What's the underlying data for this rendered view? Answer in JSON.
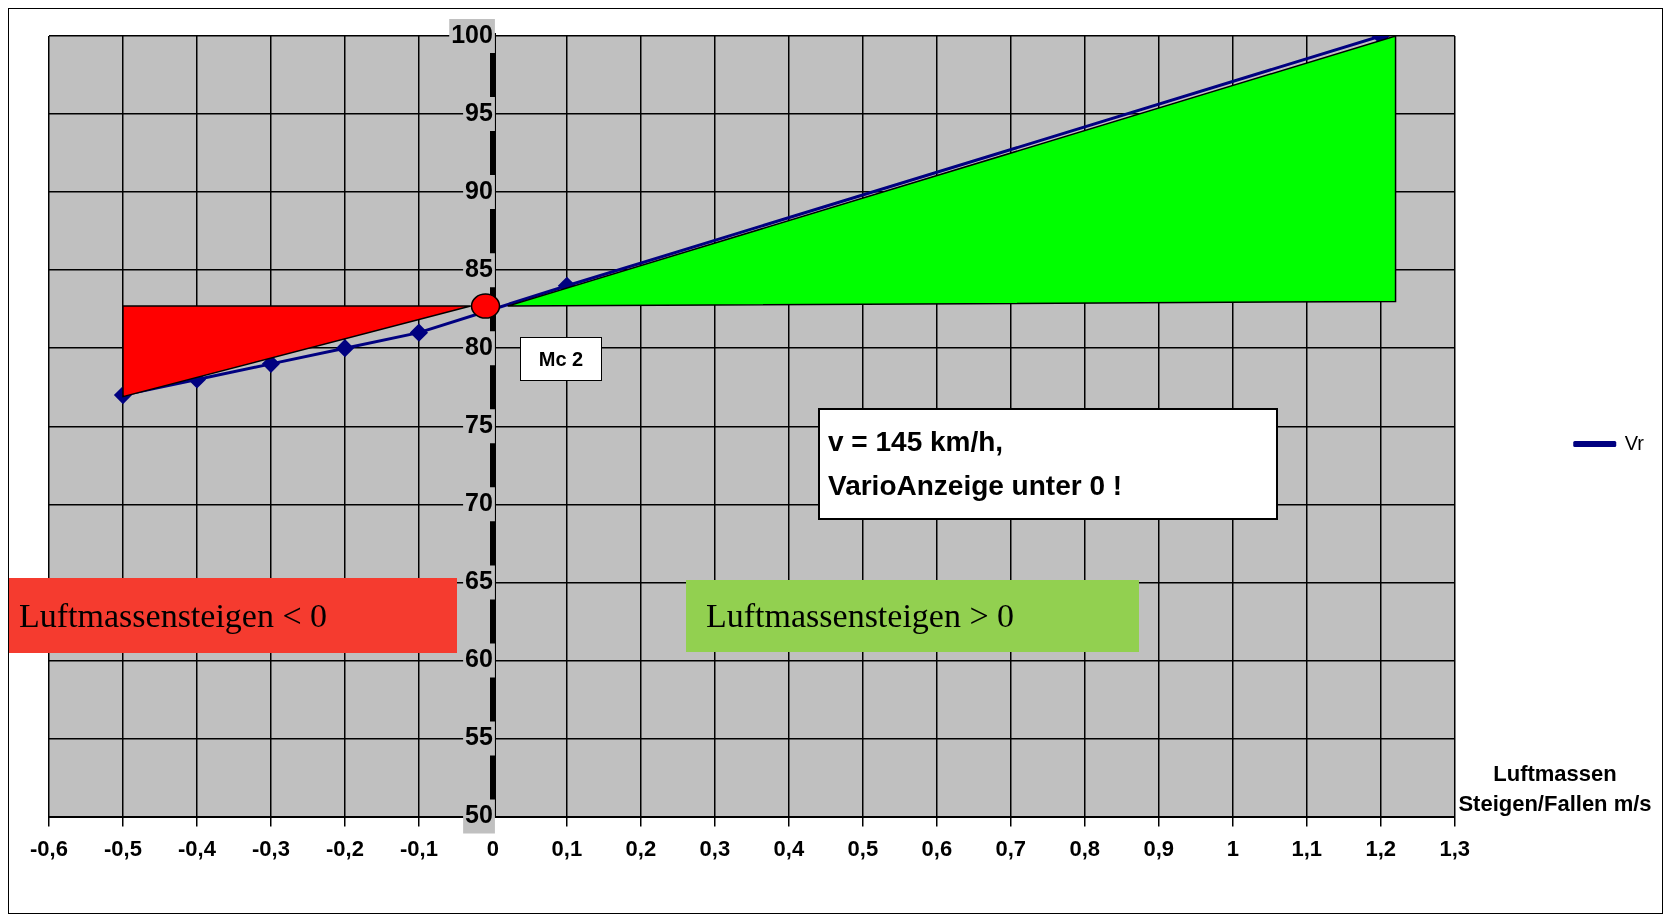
{
  "chart_data": {
    "type": "line",
    "xlabel": "Luftmassen Steigen/Fallen m/s",
    "series": [
      {
        "name": "Vr",
        "color": "#000080",
        "x": [
          -0.5,
          -0.4,
          -0.3,
          -0.2,
          -0.1,
          0.1,
          1.2
        ],
        "values": [
          77,
          78,
          79,
          80,
          81,
          84,
          100
        ]
      }
    ],
    "xlim": [
      -0.6,
      1.3
    ],
    "xticks": [
      {
        "value": -0.6,
        "label": "-0,6"
      },
      {
        "value": -0.5,
        "label": "-0,5"
      },
      {
        "value": -0.4,
        "label": "-0,4"
      },
      {
        "value": -0.3,
        "label": "-0,3"
      },
      {
        "value": -0.2,
        "label": "-0,2"
      },
      {
        "value": -0.1,
        "label": "-0,1"
      },
      0,
      {
        "value": 0.1,
        "label": "0,1"
      },
      {
        "value": 0.2,
        "label": "0,2"
      },
      {
        "value": 0.3,
        "label": "0,3"
      },
      {
        "value": 0.4,
        "label": "0,4"
      },
      {
        "value": 0.5,
        "label": "0,5"
      },
      {
        "value": 0.6,
        "label": "0,6"
      },
      {
        "value": 0.7,
        "label": "0,7"
      },
      {
        "value": 0.8,
        "label": "0,8"
      },
      {
        "value": 0.9,
        "label": "0,9"
      },
      1,
      {
        "value": 1.1,
        "label": "1,1"
      },
      {
        "value": 1.2,
        "label": "1,2"
      },
      {
        "value": 1.3,
        "label": "1,3"
      }
    ],
    "ylim": [
      50,
      100
    ],
    "yticks": [
      50,
      55,
      60,
      65,
      70,
      75,
      80,
      85,
      90,
      95,
      100
    ],
    "grid": true,
    "legend": "right",
    "marker": "diamond",
    "line_style": "solid",
    "annotations": [
      "Mc 2",
      "v = 145 km/h,\nVarioAnzeige unter 0 !",
      "Luftmassensteigen < 0",
      "Luftmassensteigen > 0"
    ]
  }
}
